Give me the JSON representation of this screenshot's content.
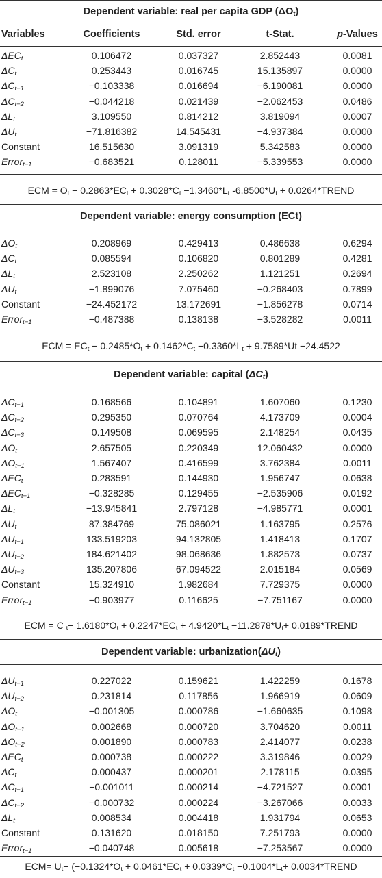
{
  "columns": {
    "variables": "Variables",
    "coefficients": "Coefficients",
    "std_error": "Std. error",
    "t_stat": "t-Stat.",
    "p_values_prefix": "p",
    "p_values_suffix": "-Values"
  },
  "gdp": {
    "title_prefix": "Dependent variable: real per capita GDP (",
    "title_var": "ΔO",
    "title_sub": "t",
    "title_suffix": ")",
    "rows": [
      {
        "var": "ΔEC",
        "sub": "t",
        "coef": "0.106472",
        "se": "0.037327",
        "t": "2.852443",
        "p": "0.0081"
      },
      {
        "var": "ΔC",
        "sub": "t",
        "coef": "0.253443",
        "se": "0.016745",
        "t": "15.135897",
        "p": "0.0000"
      },
      {
        "var": "ΔC",
        "sub": "t−1",
        "coef": "−0.103338",
        "se": "0.016694",
        "t": "−6.190081",
        "p": "0.0000"
      },
      {
        "var": "ΔC",
        "sub": "t−2",
        "coef": "−0.044218",
        "se": "0.021439",
        "t": "−2.062453",
        "p": "0.0486"
      },
      {
        "var": "ΔL",
        "sub": "t",
        "coef": "3.109550",
        "se": "0.814212",
        "t": "3.819094",
        "p": "0.0007"
      },
      {
        "var": "ΔU",
        "sub": "t",
        "coef": "−71.816382",
        "se": "14.545431",
        "t": "−4.937384",
        "p": "0.0000"
      },
      {
        "var": "Constant",
        "sub": "",
        "coef": "16.515630",
        "se": "3.091319",
        "t": "5.342583",
        "p": "0.0000"
      },
      {
        "var": "Error",
        "sub": "t−1",
        "coef": "−0.683521",
        "se": "0.128011",
        "t": "−5.339553",
        "p": "0.0000"
      }
    ],
    "ecm": "ECM = O<sub>t</sub> − 0.2863*EC<sub>t</sub> + 0.3028*C<sub>t</sub> −1.3460*L<sub>t</sub> -6.8500*U<sub>t</sub> + 0.0264*TREND"
  },
  "energy": {
    "title": "Dependent variable: energy consumption (ECt)",
    "rows": [
      {
        "var": "ΔO",
        "sub": "t",
        "coef": "0.208969",
        "se": "0.429413",
        "t": "0.486638",
        "p": "0.6294"
      },
      {
        "var": "ΔC",
        "sub": "t",
        "coef": "0.085594",
        "se": "0.106820",
        "t": "0.801289",
        "p": "0.4281"
      },
      {
        "var": "ΔL",
        "sub": "t",
        "coef": "2.523108",
        "se": "2.250262",
        "t": "1.121251",
        "p": "0.2694"
      },
      {
        "var": "ΔU",
        "sub": "t",
        "coef": "−1.899076",
        "se": "7.075460",
        "t": "−0.268403",
        "p": "0.7899"
      },
      {
        "var": "Constant",
        "sub": "",
        "coef": "−24.452172",
        "se": "13.172691",
        "t": "−1.856278",
        "p": "0.0714"
      },
      {
        "var": "Error",
        "sub": "t−1",
        "coef": "−0.487388",
        "se": "0.138138",
        "t": "−3.528282",
        "p": "0.0011"
      }
    ],
    "ecm": "ECM = EC<sub>t</sub> − 0.2485*O<sub>t</sub> + 0.1462*C<sub>t</sub> −0.3360*L<sub>t</sub> + 9.7589*Ut −24.4522"
  },
  "capital": {
    "title_prefix": "Dependent variable: capital (",
    "title_var": "ΔC",
    "title_sub": "t",
    "title_suffix": ")",
    "rows": [
      {
        "var": "ΔC",
        "sub": "t−1",
        "coef": "0.168566",
        "se": "0.104891",
        "t": "1.607060",
        "p": "0.1230"
      },
      {
        "var": "ΔC",
        "sub": "t−2",
        "coef": "0.295350",
        "se": "0.070764",
        "t": "4.173709",
        "p": "0.0004"
      },
      {
        "var": "ΔC",
        "sub": "t−3",
        "coef": "0.149508",
        "se": "0.069595",
        "t": "2.148254",
        "p": "0.0435"
      },
      {
        "var": "ΔO",
        "sub": "t",
        "coef": "2.657505",
        "se": "0.220349",
        "t": "12.060432",
        "p": "0.0000"
      },
      {
        "var": "ΔO",
        "sub": "t−1",
        "coef": "1.567407",
        "se": "0.416599",
        "t": "3.762384",
        "p": "0.0011"
      },
      {
        "var": "ΔEC",
        "sub": "t",
        "coef": "0.283591",
        "se": "0.144930",
        "t": "1.956747",
        "p": "0.0638"
      },
      {
        "var": "ΔEC",
        "sub": "t−1",
        "coef": "−0.328285",
        "se": "0.129455",
        "t": "−2.535906",
        "p": "0.0192"
      },
      {
        "var": "ΔL",
        "sub": "t",
        "coef": "−13.945841",
        "se": "2.797128",
        "t": "−4.985771",
        "p": "0.0001"
      },
      {
        "var": "ΔU",
        "sub": "t",
        "coef": "87.384769",
        "se": "75.086021",
        "t": "1.163795",
        "p": "0.2576"
      },
      {
        "var": "ΔU",
        "sub": "t−1",
        "coef": "133.519203",
        "se": "94.132805",
        "t": "1.418413",
        "p": "0.1707"
      },
      {
        "var": "ΔU",
        "sub": "t−2",
        "coef": "184.621402",
        "se": "98.068636",
        "t": "1.882573",
        "p": "0.0737"
      },
      {
        "var": "ΔU",
        "sub": "t−3",
        "coef": "135.207806",
        "se": "67.094522",
        "t": "2.015184",
        "p": "0.0569"
      },
      {
        "var": "Constant",
        "sub": "",
        "coef": "15.324910",
        "se": "1.982684",
        "t": "7.729375",
        "p": "0.0000"
      },
      {
        "var": "Error",
        "sub": "t−1",
        "coef": "−0.903977",
        "se": "0.116625",
        "t": "−7.751167",
        "p": "0.0000"
      }
    ],
    "ecm": "ECM = C <sub>t</sub>− 1.6180*O<sub>t</sub> + 0.2247*EC<sub>t</sub> + 4.9420*L<sub>t</sub> −11.2878*U<sub>t</sub>+ 0.0189*TREND"
  },
  "urban": {
    "title_prefix": "Dependent variable: urbanization(",
    "title_var": "ΔU",
    "title_sub": "t",
    "title_suffix": ")",
    "rows": [
      {
        "var": "ΔU",
        "sub": "t−1",
        "coef": "0.227022",
        "se": "0.159621",
        "t": "1.422259",
        "p": "0.1678"
      },
      {
        "var": "ΔU",
        "sub": "t−2",
        "coef": "0.231814",
        "se": "0.117856",
        "t": "1.966919",
        "p": "0.0609"
      },
      {
        "var": "ΔO",
        "sub": "t",
        "coef": "−0.001305",
        "se": "0.000786",
        "t": "−1.660635",
        "p": "0.1098"
      },
      {
        "var": "ΔO",
        "sub": "t−1",
        "coef": "0.002668",
        "se": "0.000720",
        "t": "3.704620",
        "p": "0.0011"
      },
      {
        "var": "ΔO",
        "sub": "t−2",
        "coef": "0.001890",
        "se": "0.000783",
        "t": "2.414077",
        "p": "0.0238"
      },
      {
        "var": "ΔEC",
        "sub": "t",
        "coef": "0.000738",
        "se": "0.000222",
        "t": "3.319846",
        "p": "0.0029"
      },
      {
        "var": "ΔC",
        "sub": "t",
        "coef": "0.000437",
        "se": "0.000201",
        "t": "2.178115",
        "p": "0.0395"
      },
      {
        "var": "ΔC",
        "sub": "t−1",
        "coef": "−0.001011",
        "se": "0.000214",
        "t": "−4.721527",
        "p": "0.0001"
      },
      {
        "var": "ΔC",
        "sub": "t−2",
        "coef": "−0.000732",
        "se": "0.000224",
        "t": "−3.267066",
        "p": "0.0033"
      },
      {
        "var": "ΔL",
        "sub": "t",
        "coef": "0.008534",
        "se": "0.004418",
        "t": "1.931794",
        "p": "0.0653"
      },
      {
        "var": "Constant",
        "sub": "",
        "coef": "0.131620",
        "se": "0.018150",
        "t": "7.251793",
        "p": "0.0000"
      },
      {
        "var": "Error",
        "sub": "t−1",
        "coef": "−0.040748",
        "se": "0.005618",
        "t": "−7.253567",
        "p": "0.0000"
      }
    ],
    "ecm": "ECM= U<sub>t</sub>− (−0.1324*O<sub>t</sub> + 0.0461*EC<sub>t</sub> + 0.0339*C<sub>t</sub> −0.1004*L<sub>t</sub>+ 0.0034*TREND"
  }
}
